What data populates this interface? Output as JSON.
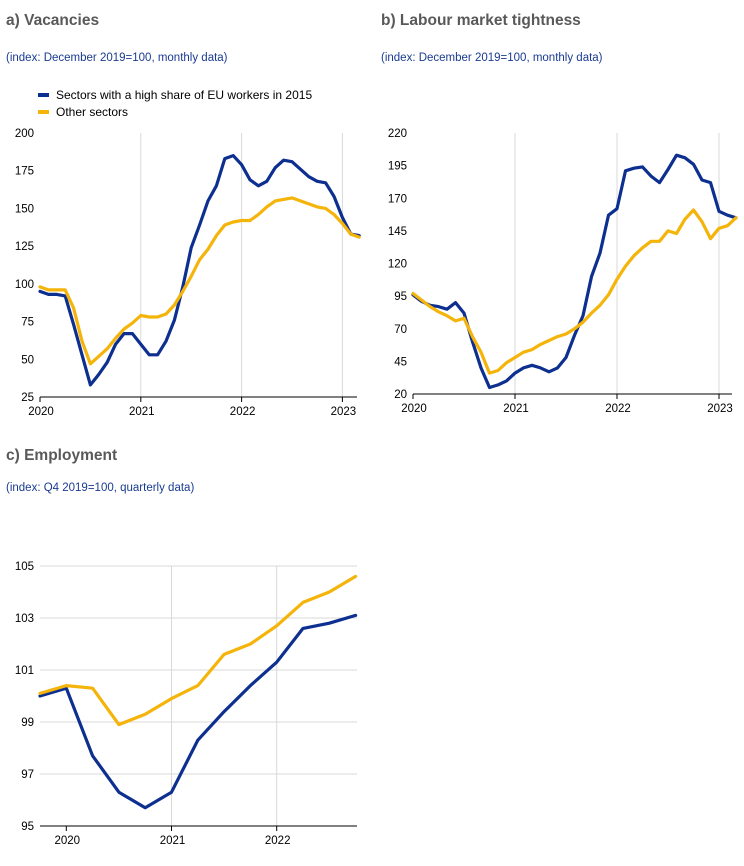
{
  "legend": {
    "series_high": "Sectors with a high share of EU workers in 2015",
    "series_other": "Other sectors"
  },
  "colors": {
    "high": "#0d2f8f",
    "other": "#f5b40a",
    "grid": "#d9d9d9",
    "axis": "#000000"
  },
  "panels": {
    "a": {
      "title": "a) Vacancies",
      "subtitle": "(index: December 2019=100, monthly data)"
    },
    "b": {
      "title": "b) Labour market tightness",
      "subtitle": "(index: December 2019=100, monthly data)"
    },
    "c": {
      "title": "c) Employment",
      "subtitle": "(index: Q4 2019=100, quarterly data)"
    }
  },
  "chart_data": [
    {
      "id": "a",
      "type": "line",
      "title": "a) Vacancies",
      "subtitle": "(index: December 2019=100, monthly data)",
      "x_start": "2020-01",
      "x_step": "month",
      "x_ticks": [
        "2020",
        "2021",
        "2022",
        "2023"
      ],
      "ylim": [
        25,
        200
      ],
      "y_ticks": [
        25,
        50,
        75,
        100,
        125,
        150,
        175,
        200
      ],
      "grid": "vertical",
      "legend_position": "top-left",
      "series": [
        {
          "name": "Sectors with a high share of EU workers in 2015",
          "color": "#0d2f8f",
          "values": [
            95,
            93,
            93,
            92,
            73,
            53,
            33,
            40,
            48,
            60,
            67,
            67,
            60,
            53,
            53,
            62,
            76,
            98,
            124,
            139,
            155,
            165,
            183,
            185,
            179,
            169,
            165,
            168,
            177,
            182,
            181,
            176,
            171,
            168,
            167,
            158,
            144,
            133,
            132
          ]
        },
        {
          "name": "Other sectors",
          "color": "#f5b40a",
          "values": [
            98,
            96,
            96,
            96,
            84,
            62,
            47,
            52,
            57,
            64,
            70,
            74,
            79,
            78,
            78,
            80,
            86,
            95,
            105,
            116,
            123,
            132,
            139,
            141,
            142,
            142,
            146,
            151,
            155,
            156,
            157,
            155,
            153,
            151,
            150,
            146,
            140,
            133,
            131
          ]
        }
      ]
    },
    {
      "id": "b",
      "type": "line",
      "title": "b) Labour market tightness",
      "subtitle": "(index: December 2019=100, monthly data)",
      "x_start": "2020-01",
      "x_step": "month",
      "x_ticks": [
        "2020",
        "2021",
        "2022",
        "2023"
      ],
      "ylim": [
        20,
        220
      ],
      "y_ticks": [
        20,
        45,
        70,
        95,
        120,
        145,
        170,
        195,
        220
      ],
      "grid": "vertical",
      "series": [
        {
          "name": "Sectors with a high share of EU workers in 2015",
          "color": "#0d2f8f",
          "values": [
            96,
            91,
            88,
            87,
            85,
            90,
            82,
            60,
            40,
            25,
            27,
            30,
            36,
            40,
            42,
            40,
            37,
            40,
            48,
            65,
            80,
            110,
            128,
            157,
            162,
            191,
            193,
            194,
            187,
            182,
            192,
            203,
            201,
            196,
            184,
            182,
            160,
            157,
            155
          ]
        },
        {
          "name": "Other sectors",
          "color": "#f5b40a",
          "values": [
            97,
            92,
            87,
            83,
            80,
            76,
            78,
            64,
            52,
            36,
            38,
            44,
            48,
            52,
            54,
            58,
            61,
            64,
            66,
            70,
            75,
            82,
            88,
            96,
            108,
            118,
            126,
            132,
            137,
            137,
            145,
            143,
            154,
            161,
            152,
            139,
            147,
            149,
            155
          ]
        }
      ]
    },
    {
      "id": "c",
      "type": "line",
      "title": "c) Employment",
      "subtitle": "(index: Q4 2019=100, quarterly data)",
      "x_start": "2019-Q4",
      "x_step": "quarter",
      "x_ticks": [
        "2020",
        "2021",
        "2022"
      ],
      "ylim": [
        95,
        105
      ],
      "y_ticks": [
        95,
        97,
        99,
        101,
        103,
        105
      ],
      "grid": "both",
      "series": [
        {
          "name": "Sectors with a high share of EU workers in 2015",
          "color": "#0d2f8f",
          "values": [
            100.0,
            100.3,
            97.7,
            96.3,
            95.7,
            96.3,
            98.3,
            99.4,
            100.4,
            101.3,
            102.6,
            102.8,
            103.1
          ]
        },
        {
          "name": "Other sectors",
          "color": "#f5b40a",
          "values": [
            100.1,
            100.4,
            100.3,
            98.9,
            99.3,
            99.9,
            100.4,
            101.6,
            102.0,
            102.7,
            103.6,
            104.0,
            104.6
          ]
        }
      ]
    }
  ]
}
